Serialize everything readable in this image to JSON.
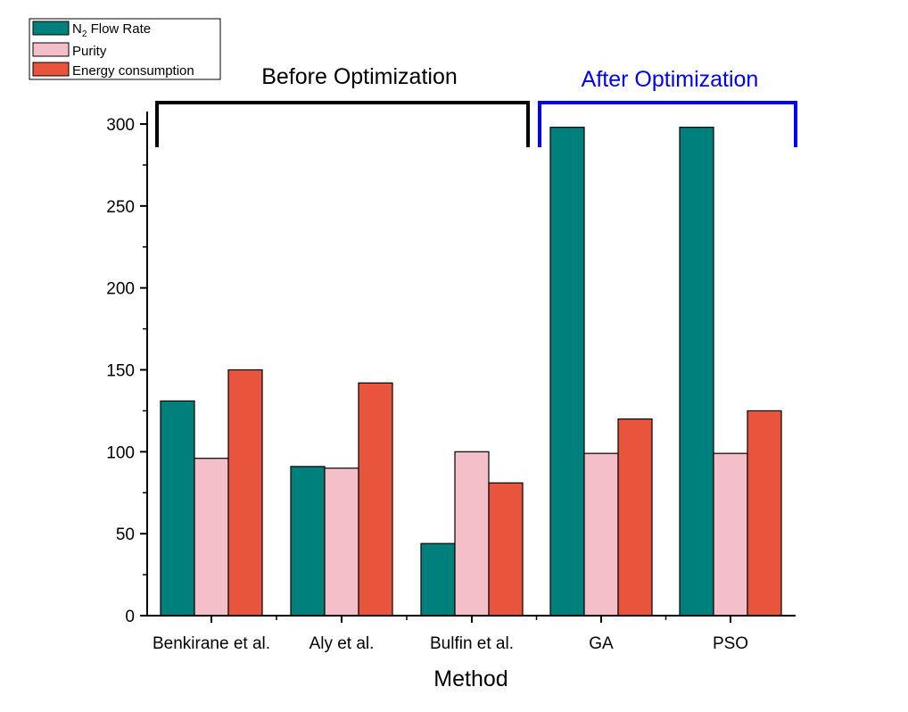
{
  "chart_data": {
    "type": "bar",
    "title": "",
    "xlabel": "Method",
    "ylabel": "",
    "categories": [
      "Benkirane et al.",
      "Aly et al.",
      "Bulfin et al.",
      "GA",
      "PSO"
    ],
    "series": [
      {
        "name": "N2 Flow Rate",
        "name_main": "N",
        "name_sub": "2",
        "name_rest": " Flow Rate",
        "color": "#00807c",
        "values": [
          131,
          91,
          44,
          298,
          298
        ]
      },
      {
        "name": "Purity",
        "color": "#f4bfc8",
        "values": [
          96,
          90,
          100,
          99,
          99
        ]
      },
      {
        "name": "Energy consumption",
        "color": "#e8553c",
        "values": [
          150,
          142,
          81,
          120,
          125
        ]
      }
    ],
    "ylim": [
      0,
      320
    ],
    "yticks": [
      0,
      50,
      100,
      150,
      200,
      250,
      300
    ],
    "legend_position": "top-left",
    "grid": false,
    "annotations": [
      {
        "label": "Before Optimization",
        "color": "#000000",
        "from_category": 0,
        "to_category": 2
      },
      {
        "label": "After Optimization",
        "color": "#0000ff",
        "from_category": 3,
        "to_category": 4
      }
    ]
  }
}
